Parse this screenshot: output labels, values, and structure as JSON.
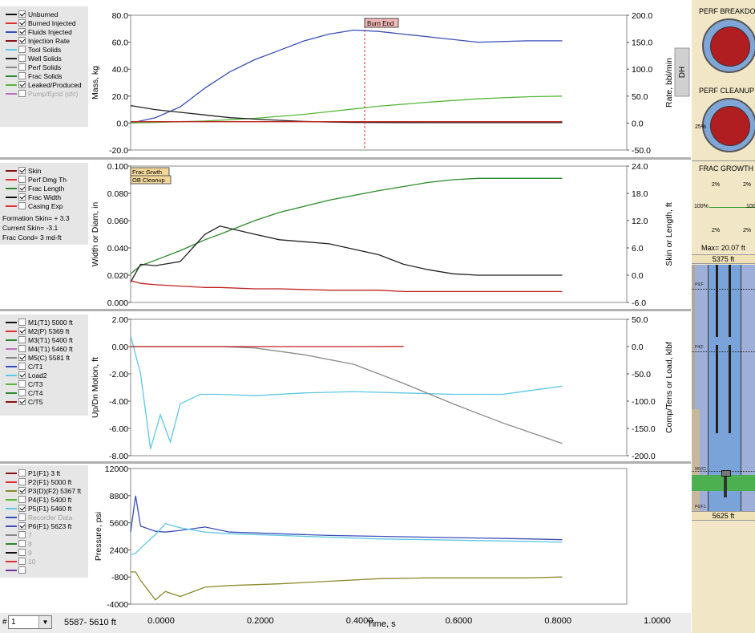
{
  "colors": {
    "blue": "#3b4eb8",
    "green": "#55b838",
    "black": "#222222",
    "red": "#c02020",
    "darkred": "#8b1010",
    "cyan": "#5fc7e4",
    "gray": "#8a8a8a",
    "olive": "#8a8a2a",
    "panel_bg": "#f1e7c6"
  },
  "panel1": {
    "legend": [
      {
        "color": "#111111",
        "checked": true,
        "label": "Unburned"
      },
      {
        "color": "#e03030",
        "checked": true,
        "label": "Burned Injected"
      },
      {
        "color": "#3050c0",
        "checked": true,
        "label": "Fluids Injected"
      },
      {
        "color": "#8b1010",
        "checked": true,
        "label": "Injection Rate"
      },
      {
        "color": "#5fc7e4",
        "checked": false,
        "label": "Tool Solids"
      },
      {
        "color": "#222222",
        "checked": false,
        "label": "Well Solids"
      },
      {
        "color": "#888888",
        "checked": false,
        "label": "Perf Solids"
      },
      {
        "color": "#2b8a2b",
        "checked": false,
        "label": "Frac Solids"
      },
      {
        "color": "#55b838",
        "checked": true,
        "label": "Leaked/Produced"
      },
      {
        "color": "#c070c0",
        "checked": false,
        "label": "Pump/Ejctd (sfc)",
        "disabled": true
      }
    ],
    "ylabel": "Mass, kg",
    "ylabel_right": "Rate, bbl/min",
    "dh_label": "DH",
    "yticks": [
      "80.0",
      "60.0",
      "40.0",
      "20.0",
      "0.0",
      "-20.0"
    ],
    "yticks_right": [
      "200.0",
      "150.0",
      "100.0",
      "50.0",
      "0.0",
      "-50.0"
    ],
    "annotation": "Burn End"
  },
  "panel2": {
    "legend": [
      {
        "color": "#8b1010",
        "checked": true,
        "label": "Skin"
      },
      {
        "color": "#e03030",
        "checked": false,
        "label": "Perf Dmg Th"
      },
      {
        "color": "#2b8a2b",
        "checked": true,
        "label": "Frac Length"
      },
      {
        "color": "#111111",
        "checked": true,
        "label": "Frac Width"
      },
      {
        "color": "#e03030",
        "checked": false,
        "label": "Casing Exp"
      }
    ],
    "info": [
      "Formation Skin= + 3.3",
      "Current Skin=  -3.1",
      "Frac Cond=     3 md-ft"
    ],
    "ylabel": "Width or Diam, in",
    "ylabel_right": "Skin or Length, ft",
    "yticks": [
      "0.100",
      "0.080",
      "0.060",
      "0.040",
      "0.020",
      "0.000"
    ],
    "yticks_right": [
      "24.0",
      "18.0",
      "12.0",
      "6.0",
      "0.0",
      "-6.0"
    ],
    "annotations": [
      "Frac  Grwth",
      "OB Cleanup"
    ]
  },
  "panel3": {
    "legend": [
      {
        "color": "#111111",
        "checked": false,
        "label": "M1(T1)  5000 ft"
      },
      {
        "color": "#e03030",
        "checked": true,
        "label": "M2(P)   5369 ft"
      },
      {
        "color": "#2b8a2b",
        "checked": false,
        "label": "M3(T1)  5400 ft"
      },
      {
        "color": "#c070c0",
        "checked": false,
        "label": "M4(T1)  5460 ft"
      },
      {
        "color": "#888888",
        "checked": true,
        "label": "M5(C)   5581 ft"
      },
      {
        "color": "#3050c0",
        "checked": false,
        "label": "C/T1"
      },
      {
        "color": "#5fc7e4",
        "checked": true,
        "label": "Load2"
      },
      {
        "color": "#55b838",
        "checked": false,
        "label": "C/T3"
      },
      {
        "color": "#2b8a2b",
        "checked": false,
        "label": "C/T4"
      },
      {
        "color": "#8b1010",
        "checked": true,
        "label": "C/T5"
      }
    ],
    "ylabel": "Up/Dn Motion, ft",
    "ylabel_right": "Comp/Tens or Load, klbf",
    "yticks": [
      "2.00",
      "0.00",
      "-2.00",
      "-4.00",
      "-6.00",
      "-8.00"
    ],
    "yticks_right": [
      "50.0",
      "0.0",
      "-50.0",
      "-100.0",
      "-150.0",
      "-200.0"
    ]
  },
  "panel4": {
    "legend": [
      {
        "color": "#8b1010",
        "checked": false,
        "label": "P1(F1)     3 ft"
      },
      {
        "color": "#e03030",
        "checked": false,
        "label": "P2(F1) 5000 ft"
      },
      {
        "color": "#8a8a2a",
        "checked": true,
        "label": "P3(D)(F2) 5367 ft"
      },
      {
        "color": "#55b838",
        "checked": false,
        "label": "P4(F1) 5400 ft"
      },
      {
        "color": "#5fc7e4",
        "checked": true,
        "label": "P5(F1) 5460 ft"
      },
      {
        "color": "#3050c0",
        "checked": false,
        "label": "Recorder Data",
        "disabled": true
      },
      {
        "color": "#3b4eb8",
        "checked": true,
        "label": "P6(F1) 5623 ft"
      },
      {
        "color": "#888888",
        "checked": false,
        "label": "7",
        "disabled": true
      },
      {
        "color": "#2b8a2b",
        "checked": false,
        "label": "8",
        "disabled": true
      },
      {
        "color": "#111111",
        "checked": false,
        "label": "9",
        "disabled": true
      },
      {
        "color": "#e03030",
        "checked": false,
        "label": "10",
        "disabled": true
      },
      {
        "color": "#7030a0",
        "checked": false,
        "label": "",
        "disabled": true
      }
    ],
    "ylabel": "Pressure, psi",
    "yticks": [
      "12000",
      "8800",
      "5600",
      "2400",
      "-800",
      "-4000"
    ]
  },
  "xaxis": {
    "label": "Time, s",
    "ticks": [
      "0.0000",
      "0.2000",
      "0.4000",
      "0.6000",
      "0.8000",
      "1.0000"
    ]
  },
  "bottom": {
    "select_value": "1",
    "select_prefix": "#",
    "depth_range": "5587- 5610 ft"
  },
  "right": {
    "perf_breakdown": "PERF BREAKDO",
    "perf_cleanup": "PERF CLEANUP",
    "cleanup_pct_left": "25%",
    "frac_growth": "FRAC GROWTH",
    "fg_top_left": "2%",
    "fg_top_right": "2%",
    "fg_mid_left": "100%",
    "fg_mid_right": "100",
    "fg_bot_left": "2%",
    "fg_bot_right": "2%",
    "max_label": "Max= 20.07 ft",
    "top_depth": "5375 ft",
    "bottom_depth": "5625 ft",
    "well_label1": "P6(F",
    "well_label2": "P4(F",
    "well_label3": "M5(C)",
    "well_label4": "P6(F1"
  },
  "chart_data": [
    {
      "type": "line",
      "x": [
        0.0,
        0.05,
        0.1,
        0.15,
        0.2,
        0.25,
        0.3,
        0.35,
        0.4,
        0.45,
        0.5,
        0.6,
        0.7,
        0.8,
        0.87
      ],
      "ylim": [
        -20,
        80
      ],
      "ylim_right": [
        -50,
        200
      ],
      "series": [
        {
          "color": "#3b4eb8",
          "values": [
            0,
            4,
            12,
            26,
            38,
            47,
            54,
            61,
            66,
            69,
            68,
            64,
            60,
            61,
            61
          ]
        },
        {
          "color": "#55b838",
          "values": [
            0,
            0.5,
            1,
            1.5,
            2.5,
            3.5,
            5,
            6.5,
            8.5,
            10.5,
            12.5,
            15.5,
            18,
            19.5,
            20
          ]
        },
        {
          "color": "#222222",
          "values": [
            13,
            10,
            8,
            6,
            4,
            3,
            2,
            1.2,
            0.8,
            0.5,
            0.4,
            0.3,
            0.3,
            0.3,
            0.3
          ]
        },
        {
          "color": "#c02020",
          "values": [
            1,
            1,
            1,
            1,
            1,
            1,
            1,
            1,
            1,
            1,
            1,
            1,
            1,
            1,
            1
          ]
        }
      ]
    },
    {
      "type": "line",
      "x": [
        0.0,
        0.02,
        0.05,
        0.1,
        0.15,
        0.18,
        0.25,
        0.3,
        0.4,
        0.5,
        0.55,
        0.6,
        0.65,
        0.7,
        0.75,
        0.8,
        0.87
      ],
      "ylim": [
        0,
        0.1
      ],
      "ylim_right": [
        -6,
        24
      ],
      "series": [
        {
          "color": "#2b8a2b",
          "values": [
            0.021,
            0.027,
            0.031,
            0.038,
            0.046,
            0.05,
            0.06,
            0.066,
            0.075,
            0.082,
            0.085,
            0.088,
            0.09,
            0.091,
            0.091,
            0.091,
            0.091
          ]
        },
        {
          "color": "#222222",
          "values": [
            0.015,
            0.028,
            0.027,
            0.03,
            0.05,
            0.056,
            0.05,
            0.046,
            0.043,
            0.035,
            0.028,
            0.024,
            0.021,
            0.02,
            0.02,
            0.02,
            0.02
          ]
        },
        {
          "color": "#c02020",
          "values": [
            0.016,
            0.014,
            0.013,
            0.012,
            0.011,
            0.011,
            0.01,
            0.01,
            0.009,
            0.009,
            0.008,
            0.008,
            0.008,
            0.008,
            0.008,
            0.008,
            0.008
          ]
        }
      ]
    },
    {
      "type": "line",
      "x": [
        0.0,
        0.02,
        0.04,
        0.06,
        0.08,
        0.1,
        0.14,
        0.18,
        0.25,
        0.35,
        0.45,
        0.55,
        0.65,
        0.75,
        0.87
      ],
      "ylim": [
        -8,
        2
      ],
      "ylim_right": [
        -200,
        50
      ],
      "series": [
        {
          "color": "#5fc7e4",
          "values": [
            0.8,
            -2,
            -7.5,
            -5,
            -7,
            -4.2,
            -3.5,
            -3.5,
            -3.6,
            -3.4,
            -3.3,
            -3.4,
            -3.5,
            -3.5,
            -2.9
          ]
        },
        {
          "color": "#8a8a8a",
          "values": [
            0,
            0,
            0,
            0,
            0,
            0,
            0,
            0,
            -0.1,
            -0.6,
            -1.3,
            -2.7,
            -4.2,
            -5.6,
            -7.1
          ]
        },
        {
          "color": "#c02020",
          "values": [
            0,
            0,
            0,
            0,
            0,
            0,
            0,
            0,
            0,
            0,
            0,
            0.01,
            null,
            null,
            null
          ]
        }
      ]
    },
    {
      "type": "line",
      "x": [
        0.0,
        0.01,
        0.02,
        0.05,
        0.07,
        0.1,
        0.15,
        0.2,
        0.3,
        0.4,
        0.5,
        0.6,
        0.7,
        0.8,
        0.87
      ],
      "ylim": [
        -4000,
        12000
      ],
      "series": [
        {
          "color": "#3b4eb8",
          "values": [
            4500,
            8800,
            5200,
            4600,
            4500,
            4700,
            5100,
            4500,
            4300,
            4100,
            4000,
            3900,
            3800,
            3700,
            3600
          ]
        },
        {
          "color": "#5fc7e4",
          "values": [
            1800,
            2000,
            2600,
            4200,
            5500,
            5000,
            4500,
            4300,
            4100,
            3900,
            3700,
            3600,
            3500,
            3400,
            3300
          ]
        },
        {
          "color": "#8a8a2a",
          "values": [
            -200,
            -200,
            -1200,
            -3500,
            -2500,
            -3100,
            -2000,
            -1800,
            -1600,
            -1300,
            -1000,
            -900,
            -900,
            -900,
            -800
          ]
        }
      ]
    }
  ]
}
